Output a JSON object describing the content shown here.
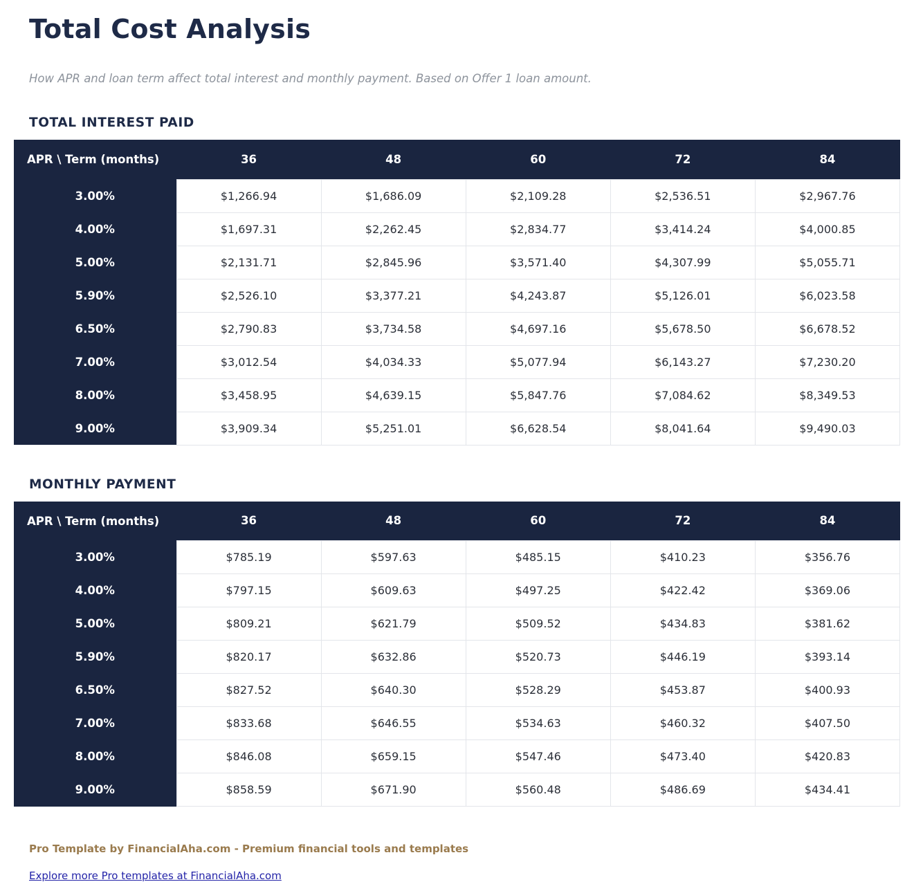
{
  "header": {
    "title": "Total Cost Analysis",
    "subtitle": "How APR and loan term affect total interest and monthly payment. Based on Offer 1 loan amount."
  },
  "tables": [
    {
      "section_title": "TOTAL INTEREST PAID",
      "corner_label": "APR \\ Term (months)",
      "term_headers": [
        "36",
        "48",
        "60",
        "72",
        "84"
      ],
      "rows": [
        {
          "apr": "3.00%",
          "values": [
            "$1,266.94",
            "$1,686.09",
            "$2,109.28",
            "$2,536.51",
            "$2,967.76"
          ]
        },
        {
          "apr": "4.00%",
          "values": [
            "$1,697.31",
            "$2,262.45",
            "$2,834.77",
            "$3,414.24",
            "$4,000.85"
          ]
        },
        {
          "apr": "5.00%",
          "values": [
            "$2,131.71",
            "$2,845.96",
            "$3,571.40",
            "$4,307.99",
            "$5,055.71"
          ]
        },
        {
          "apr": "5.90%",
          "values": [
            "$2,526.10",
            "$3,377.21",
            "$4,243.87",
            "$5,126.01",
            "$6,023.58"
          ]
        },
        {
          "apr": "6.50%",
          "values": [
            "$2,790.83",
            "$3,734.58",
            "$4,697.16",
            "$5,678.50",
            "$6,678.52"
          ]
        },
        {
          "apr": "7.00%",
          "values": [
            "$3,012.54",
            "$4,034.33",
            "$5,077.94",
            "$6,143.27",
            "$7,230.20"
          ]
        },
        {
          "apr": "8.00%",
          "values": [
            "$3,458.95",
            "$4,639.15",
            "$5,847.76",
            "$7,084.62",
            "$8,349.53"
          ]
        },
        {
          "apr": "9.00%",
          "values": [
            "$3,909.34",
            "$5,251.01",
            "$6,628.54",
            "$8,041.64",
            "$9,490.03"
          ]
        }
      ]
    },
    {
      "section_title": "MONTHLY PAYMENT",
      "corner_label": "APR \\ Term (months)",
      "term_headers": [
        "36",
        "48",
        "60",
        "72",
        "84"
      ],
      "rows": [
        {
          "apr": "3.00%",
          "values": [
            "$785.19",
            "$597.63",
            "$485.15",
            "$410.23",
            "$356.76"
          ]
        },
        {
          "apr": "4.00%",
          "values": [
            "$797.15",
            "$609.63",
            "$497.25",
            "$422.42",
            "$369.06"
          ]
        },
        {
          "apr": "5.00%",
          "values": [
            "$809.21",
            "$621.79",
            "$509.52",
            "$434.83",
            "$381.62"
          ]
        },
        {
          "apr": "5.90%",
          "values": [
            "$820.17",
            "$632.86",
            "$520.73",
            "$446.19",
            "$393.14"
          ]
        },
        {
          "apr": "6.50%",
          "values": [
            "$827.52",
            "$640.30",
            "$528.29",
            "$453.87",
            "$400.93"
          ]
        },
        {
          "apr": "7.00%",
          "values": [
            "$833.68",
            "$646.55",
            "$534.63",
            "$460.32",
            "$407.50"
          ]
        },
        {
          "apr": "8.00%",
          "values": [
            "$846.08",
            "$659.15",
            "$547.46",
            "$473.40",
            "$420.83"
          ]
        },
        {
          "apr": "9.00%",
          "values": [
            "$858.59",
            "$671.90",
            "$560.48",
            "$486.69",
            "$434.41"
          ]
        }
      ]
    }
  ],
  "footer": {
    "promo": "Pro Template by FinancialAha.com - Premium financial tools and templates",
    "link_label": "Explore more Pro templates at FinancialAha.com"
  },
  "colors": {
    "header_navy": "#1a2540",
    "heading_text": "#1e2a47",
    "promo_gold": "#9a7b4e",
    "link_blue": "#2323a8",
    "grid_line": "#e3e5ea"
  }
}
